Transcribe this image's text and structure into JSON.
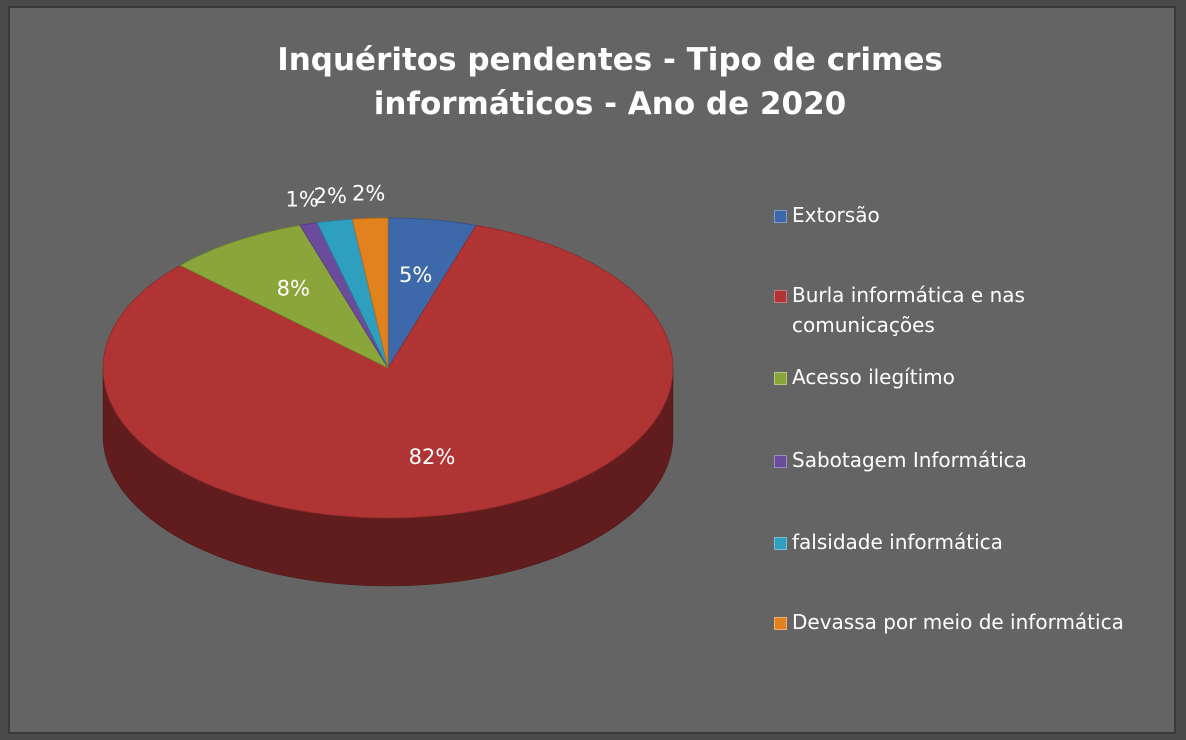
{
  "chart_data": {
    "type": "pie",
    "title": "Inquéritos pendentes - Tipo de crimes informáticos - Ano de 2020",
    "categories": [
      "Extorsão",
      "Burla informática e nas comunicações",
      "Acesso ilegítimo",
      "Sabotagem Informática",
      "falsidade informática",
      "Devassa por meio de informática"
    ],
    "values": [
      5,
      82,
      8,
      1,
      2,
      2
    ],
    "value_labels": [
      "5%",
      "82%",
      "8%",
      "1%",
      "2%",
      "2%"
    ],
    "colors": [
      "#3d68aa",
      "#b03434",
      "#8aa63a",
      "#6b4c9c",
      "#2f9fc0",
      "#e2821f"
    ],
    "legend": "right"
  }
}
